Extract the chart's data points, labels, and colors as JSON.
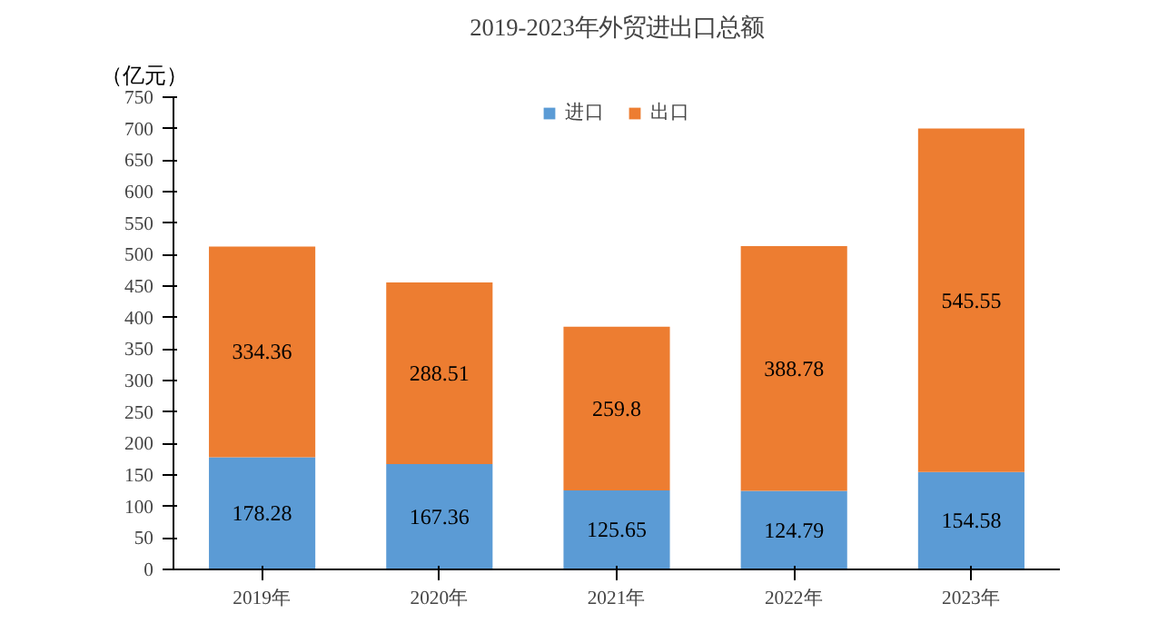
{
  "chart_data": {
    "type": "bar",
    "title": "2019-2023年外贸进出口总额",
    "ylabel": "（亿元）",
    "categories": [
      "2019年",
      "2020年",
      "2021年",
      "2022年",
      "2023年"
    ],
    "stacked": true,
    "series": [
      {
        "name": "进口",
        "color": "#5b9bd5",
        "values": [
          178.28,
          167.36,
          125.65,
          124.79,
          154.58
        ]
      },
      {
        "name": "出口",
        "color": "#ed7d31",
        "values": [
          334.36,
          288.51,
          259.8,
          388.78,
          545.55
        ]
      }
    ],
    "ylim": [
      0,
      750
    ],
    "yticks": [
      0,
      50,
      100,
      150,
      200,
      250,
      300,
      350,
      400,
      450,
      500,
      550,
      600,
      650,
      700,
      750
    ],
    "grid": false,
    "legend": "top",
    "data_labels": true
  }
}
